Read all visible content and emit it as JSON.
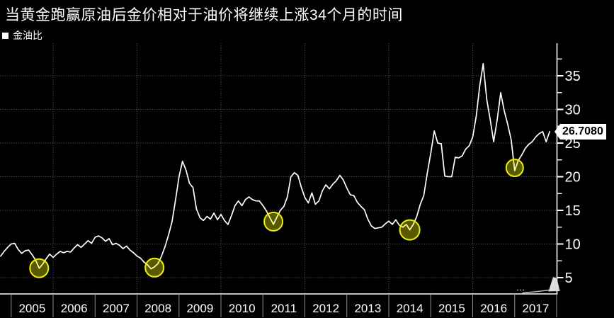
{
  "title": "当黄金跑赢原油后金价相对于油价将继续上涨34个月的时间",
  "legend": {
    "label": "金油比",
    "marker_icon": "white-square"
  },
  "value_tag": {
    "text": "26.7080"
  },
  "colors": {
    "background": "#000000",
    "line": "#ffffff",
    "grid": "#5f5f5f",
    "marker_stroke": "#f0f000",
    "marker_fill": "rgba(255,255,0,0.35)",
    "value_tag_bg": "#ffffff",
    "value_tag_text": "#000000"
  },
  "chart_data": {
    "type": "line",
    "title": "当黄金跑赢原油后金价相对于油价将继续上涨34个月的时间",
    "legend_entries": [
      "金油比"
    ],
    "legend_position": "top-left",
    "grid": "dotted",
    "x_unit": "month",
    "x_tick_labels": [
      "2005",
      "2006",
      "2007",
      "2008",
      "2009",
      "2010",
      "2011",
      "2012",
      "2013",
      "2014",
      "2015",
      "2016",
      "2017"
    ],
    "y_ticks": [
      5,
      10,
      15,
      20,
      25,
      30,
      35
    ],
    "y_minor_ticks": [
      7.5,
      12.5,
      17.5,
      22.5,
      27.5,
      32.5,
      37.5
    ],
    "ylim": [
      4.2,
      38.5
    ],
    "last_value": 26.708,
    "series": [
      {
        "name": "金油比",
        "values": [
          8.2,
          8.9,
          9.5,
          10.0,
          10.1,
          9.2,
          8.6,
          9.0,
          9.1,
          8.4,
          7.6,
          6.4,
          7.0,
          7.8,
          8.5,
          8.0,
          8.5,
          8.9,
          8.7,
          8.9,
          8.8,
          9.4,
          9.9,
          9.5,
          10.0,
          10.5,
          10.1,
          11.0,
          11.2,
          10.9,
          10.4,
          10.8,
          9.9,
          10.1,
          9.8,
          9.3,
          9.7,
          9.1,
          8.7,
          8.2,
          7.9,
          7.3,
          6.9,
          6.3,
          6.6,
          7.1,
          8.2,
          9.6,
          11.3,
          13.3,
          16.5,
          20.0,
          22.3,
          21.0,
          19.0,
          18.4,
          15.2,
          13.9,
          13.5,
          14.1,
          13.7,
          14.6,
          13.6,
          14.4,
          13.5,
          12.9,
          14.2,
          15.7,
          16.4,
          15.7,
          16.6,
          17.0,
          16.6,
          16.4,
          16.4,
          15.7,
          14.9,
          13.9,
          12.9,
          14.0,
          15.0,
          15.6,
          17.0,
          20.0,
          20.6,
          20.2,
          18.4,
          16.9,
          16.1,
          17.6,
          15.9,
          16.4,
          17.9,
          18.8,
          18.2,
          18.9,
          19.4,
          20.2,
          19.5,
          18.3,
          17.3,
          17.2,
          16.2,
          15.6,
          15.1,
          13.7,
          12.7,
          12.3,
          12.4,
          12.5,
          13.0,
          13.4,
          12.9,
          13.6,
          12.8,
          12.5,
          12.9,
          12.1,
          12.9,
          14.1,
          15.9,
          17.2,
          20.5,
          23.5,
          26.8,
          25.0,
          24.9,
          20.1,
          20.0,
          20.0,
          22.9,
          22.8,
          23.1,
          24.1,
          24.6,
          25.9,
          29.0,
          33.5,
          36.8,
          31.5,
          28.5,
          25.2,
          28.5,
          32.5,
          29.8,
          27.8,
          25.5,
          20.9,
          22.4,
          23.2,
          24.2,
          24.8,
          25.2,
          25.9,
          26.4,
          26.7,
          25.2,
          26.7
        ]
      }
    ],
    "low_markers": [
      {
        "index": 11,
        "r": 13,
        "dy": 0
      },
      {
        "index": 44,
        "r": 13,
        "dy": 1
      },
      {
        "index": 78,
        "r": 13,
        "dy": -4
      },
      {
        "index": 117,
        "r": 14,
        "dy": 0
      },
      {
        "index": 147,
        "r": 12,
        "dy": -4
      }
    ]
  }
}
